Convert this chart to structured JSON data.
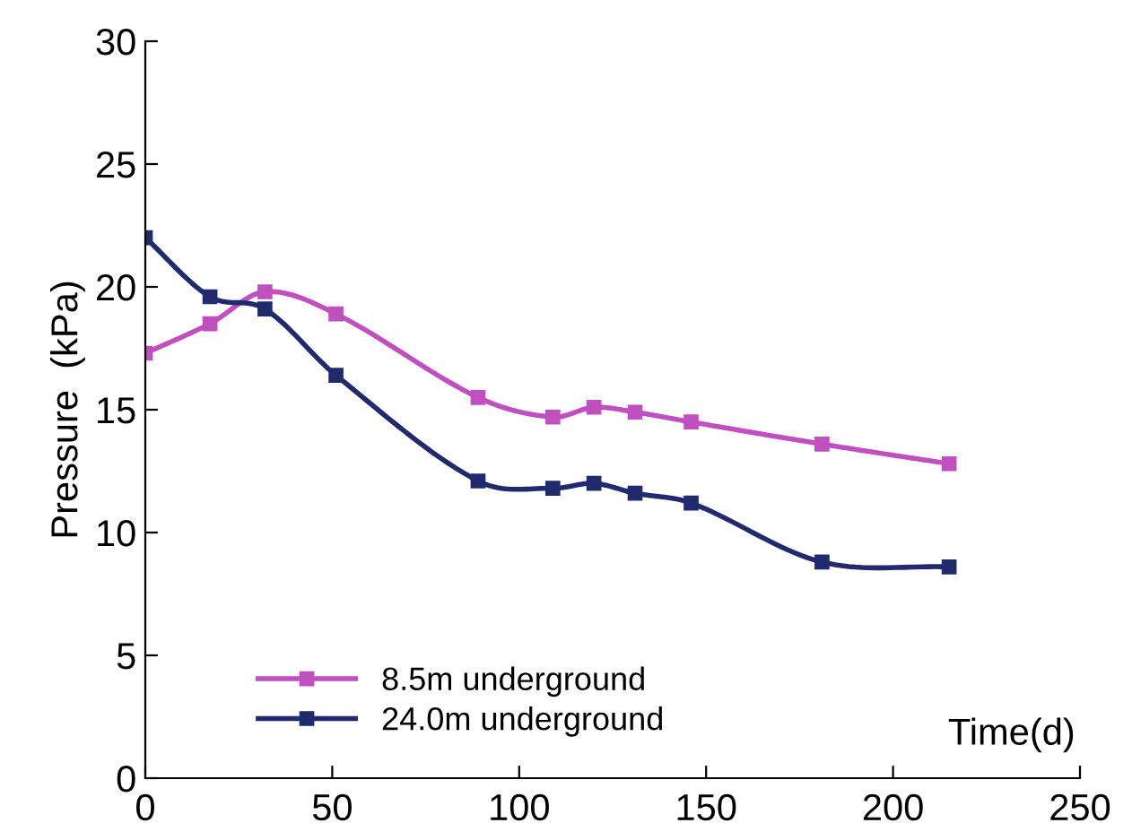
{
  "chart_data": {
    "type": "line",
    "xlabel": "Time(d)",
    "ylabel": "Pressure  (kPa)",
    "xlim": [
      0,
      250
    ],
    "xticks": [
      0,
      50,
      100,
      150,
      200,
      250
    ],
    "ylim": [
      0,
      30
    ],
    "yticks": [
      0,
      5,
      10,
      15,
      20,
      25,
      30
    ],
    "grid": false,
    "legend": "bottom left",
    "marker": "square",
    "line_style": "solid",
    "series": [
      {
        "name": "8.5m underground",
        "color": "#c04fbf",
        "x": [
          0,
          17.3,
          32,
          51,
          89,
          109,
          120,
          131,
          146,
          181,
          215
        ],
        "values": [
          17.3,
          18.5,
          19.8,
          18.9,
          15.5,
          14.7,
          15.1,
          14.9,
          14.5,
          13.6,
          12.8
        ]
      },
      {
        "name": "24.0m underground",
        "color": "#222a6e",
        "x": [
          0,
          17.3,
          32,
          51,
          89,
          109,
          120,
          131,
          146,
          181,
          215
        ],
        "values": [
          22.0,
          19.6,
          19.1,
          16.4,
          12.1,
          11.8,
          12.0,
          11.6,
          11.2,
          8.8,
          8.6
        ]
      }
    ]
  }
}
